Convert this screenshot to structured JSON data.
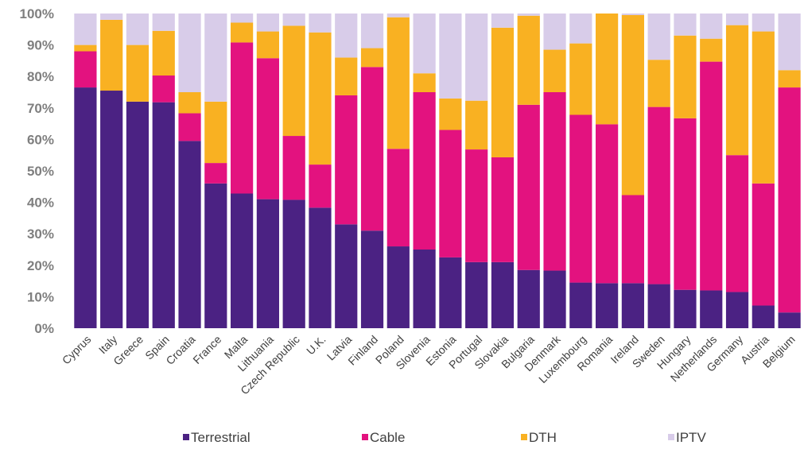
{
  "chart_data": {
    "type": "bar",
    "stacked": true,
    "normalized": true,
    "categories": [
      "Cyprus",
      "Italy",
      "Greece",
      "Spain",
      "Croatia",
      "France",
      "Malta",
      "Lithuania",
      "Czech Republic",
      "U.K.",
      "Latvia",
      "Finland",
      "Poland",
      "Slovenia",
      "Estonia",
      "Portugal",
      "Slovakia",
      "Bulgaria",
      "Denmark",
      "Luxembourg",
      "Romania",
      "Ireland",
      "Sweden",
      "Hungary",
      "Netherlands",
      "Germany",
      "Austria",
      "Belgium"
    ],
    "series": [
      {
        "name": "Terrestrial",
        "color": "#4b2283",
        "values": [
          76.5,
          75.5,
          72,
          71.8,
          59.5,
          46,
          42.8,
          41,
          40.8,
          38.3,
          33,
          31,
          26,
          25,
          22.5,
          21,
          21,
          18.5,
          18.3,
          14.5,
          14.3,
          14.3,
          14,
          12.2,
          12,
          11.5,
          7.2,
          5
        ]
      },
      {
        "name": "Cable",
        "color": "#e3127f",
        "values": [
          11.5,
          0,
          0,
          8.5,
          8.8,
          6.5,
          48,
          44.8,
          20.3,
          13.7,
          41,
          52,
          31,
          50,
          40.5,
          35.8,
          33.3,
          52.5,
          56.7,
          53.3,
          50.5,
          28,
          56.3,
          54.5,
          72.7,
          43.5,
          38.8,
          71.5
        ]
      },
      {
        "name": "DTH",
        "color": "#f9b122",
        "values": [
          2,
          22.5,
          18,
          14.2,
          6.7,
          19.5,
          6.3,
          8.5,
          35,
          42,
          12,
          6,
          41.8,
          6,
          10,
          15.5,
          41.2,
          28.3,
          13.5,
          22.7,
          35.2,
          57.2,
          15,
          26.3,
          7.3,
          41.3,
          48.3,
          5.5
        ]
      },
      {
        "name": "IPTV",
        "color": "#d8cce9",
        "values": [
          10,
          2,
          10,
          5.5,
          25,
          28,
          2.9,
          5.7,
          3.9,
          6,
          14,
          11,
          1.2,
          19,
          27,
          27.7,
          4.5,
          0.7,
          11.5,
          9.5,
          0,
          0.5,
          14.7,
          7,
          8,
          3.7,
          5.7,
          18
        ]
      }
    ],
    "yaxis": {
      "min": 0,
      "max": 100,
      "ticks": [
        "0%",
        "10%",
        "20%",
        "30%",
        "40%",
        "50%",
        "60%",
        "70%",
        "80%",
        "90%",
        "100%"
      ]
    },
    "grid": false,
    "legend_position": "bottom",
    "xlabel": "",
    "ylabel": ""
  }
}
